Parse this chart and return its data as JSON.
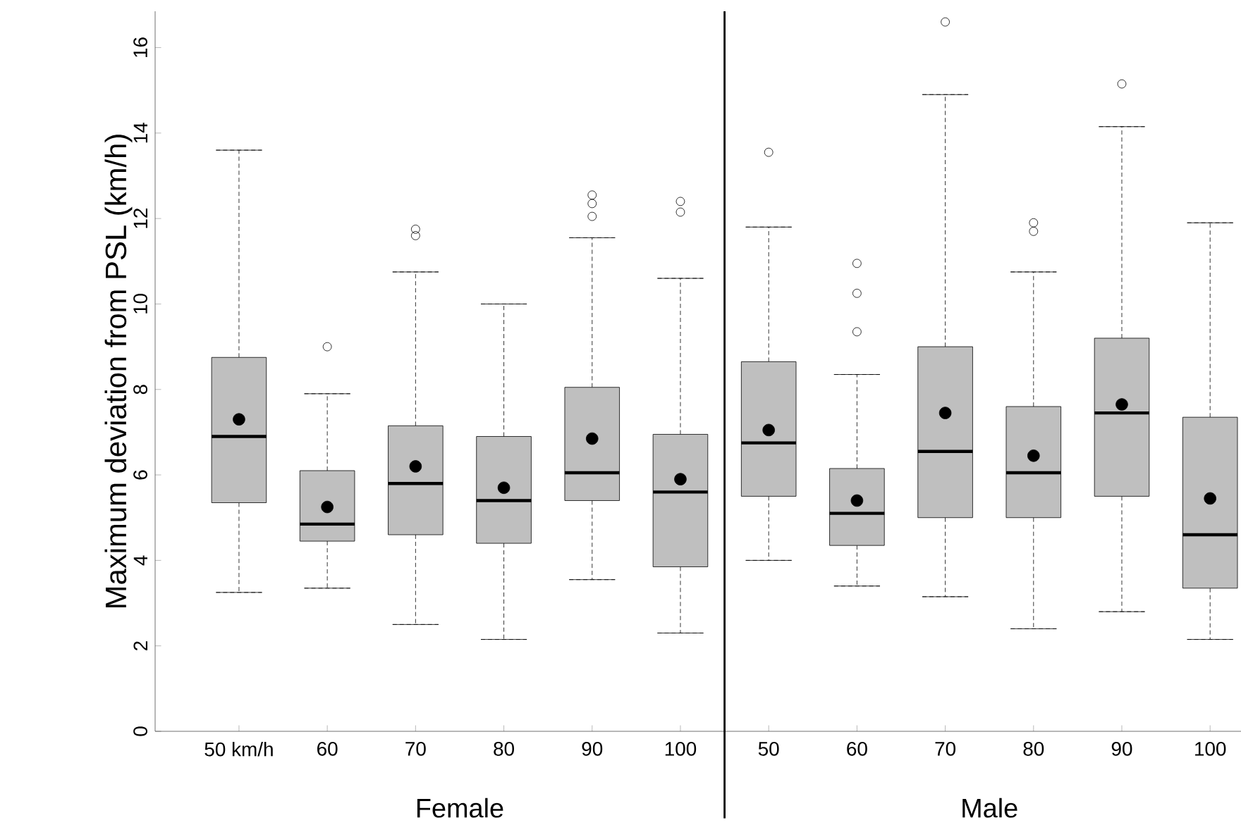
{
  "chart_data": {
    "type": "box",
    "ylabel": "Maximum deviation from PSL (km/h)",
    "categories": [
      "50 km/h",
      "60",
      "70",
      "80",
      "90",
      "100",
      "50",
      "60",
      "70",
      "80",
      "90",
      "100"
    ],
    "annotations": [
      "Female",
      "Male"
    ],
    "color": "#bfbfbf",
    "ylim": [
      0,
      16.85
    ],
    "yticks": [
      0,
      2,
      4,
      6,
      8,
      10,
      12,
      14,
      16
    ],
    "marker": "circle",
    "boxes": [
      {
        "low": 3.25,
        "q1": 5.35,
        "median": 6.9,
        "q3": 8.75,
        "high": 13.6,
        "mean": 7.3
      },
      {
        "low": 3.35,
        "q1": 4.45,
        "median": 4.85,
        "q3": 6.1,
        "high": 7.9,
        "mean": 5.25,
        "outliers": [
          9.0
        ]
      },
      {
        "low": 2.5,
        "q1": 4.6,
        "median": 5.8,
        "q3": 7.15,
        "high": 10.75,
        "mean": 6.2,
        "outliers": [
          11.6,
          11.75
        ]
      },
      {
        "low": 2.15,
        "q1": 4.4,
        "median": 5.4,
        "q3": 6.9,
        "high": 10.0,
        "mean": 5.7
      },
      {
        "low": 3.55,
        "q1": 5.4,
        "median": 6.05,
        "q3": 8.05,
        "high": 11.55,
        "mean": 6.85,
        "outliers": [
          12.05,
          12.35,
          12.55
        ]
      },
      {
        "low": 2.3,
        "q1": 3.85,
        "median": 5.6,
        "q3": 6.95,
        "high": 10.6,
        "mean": 5.9,
        "outliers": [
          12.15,
          12.4
        ]
      },
      {
        "low": 4.0,
        "q1": 5.5,
        "median": 6.75,
        "q3": 8.65,
        "high": 11.8,
        "mean": 7.05,
        "outliers": [
          13.55
        ]
      },
      {
        "low": 3.4,
        "q1": 4.35,
        "median": 5.1,
        "q3": 6.15,
        "high": 8.35,
        "mean": 5.4,
        "outliers": [
          9.35,
          10.25,
          10.95
        ]
      },
      {
        "low": 3.15,
        "q1": 5.0,
        "median": 6.55,
        "q3": 9.0,
        "high": 14.9,
        "mean": 7.45,
        "outliers": [
          16.6
        ]
      },
      {
        "low": 2.4,
        "q1": 5.0,
        "median": 6.05,
        "q3": 7.6,
        "high": 10.75,
        "mean": 6.45,
        "outliers": [
          11.7,
          11.9
        ]
      },
      {
        "low": 2.8,
        "q1": 5.5,
        "median": 7.45,
        "q3": 9.2,
        "high": 14.15,
        "mean": 7.65,
        "outliers": [
          15.15
        ]
      },
      {
        "low": 2.15,
        "q1": 3.35,
        "median": 4.6,
        "q3": 7.35,
        "high": 11.9,
        "mean": 5.45
      }
    ]
  }
}
